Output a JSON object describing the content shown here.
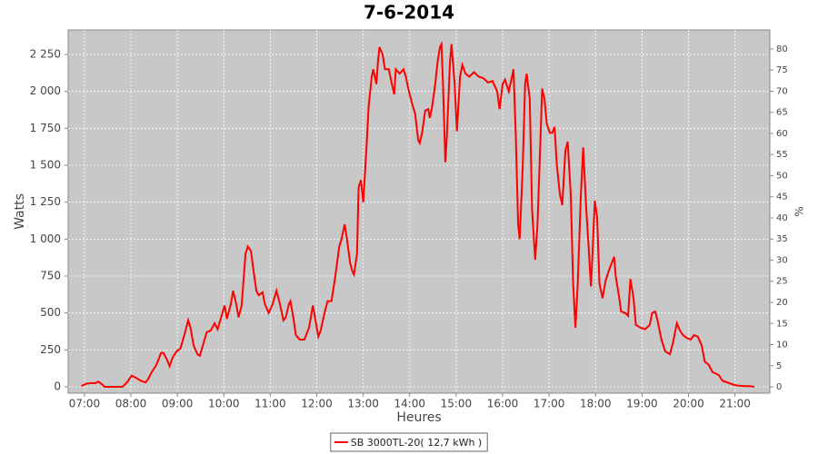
{
  "chart_data": {
    "type": "line",
    "title": "7-6-2014",
    "xlabel": "Heures",
    "ylabel": "Watts",
    "y2label": "%",
    "x": [
      "06:56",
      "07:02",
      "07:08",
      "07:14",
      "07:18",
      "07:22",
      "07:26",
      "07:49",
      "07:55",
      "08:01",
      "08:07",
      "08:13",
      "08:19",
      "08:22",
      "08:27",
      "08:33",
      "08:39",
      "08:42",
      "08:47",
      "08:50",
      "08:54",
      "08:59",
      "09:04",
      "09:09",
      "09:14",
      "09:17",
      "09:21",
      "09:26",
      "09:29",
      "09:34",
      "09:38",
      "09:43",
      "09:48",
      "09:52",
      "09:57",
      "10:01",
      "10:04",
      "10:09",
      "10:12",
      "10:16",
      "10:19",
      "10:23",
      "10:28",
      "10:31",
      "10:35",
      "10:38",
      "10:42",
      "10:45",
      "10:50",
      "10:53",
      "10:58",
      "11:03",
      "11:08",
      "11:12",
      "11:17",
      "11:20",
      "11:24",
      "11:26",
      "11:30",
      "11:33",
      "11:38",
      "11:44",
      "11:50",
      "11:55",
      "11:58",
      "12:02",
      "12:05",
      "12:10",
      "12:14",
      "12:19",
      "12:24",
      "12:29",
      "12:32",
      "12:36",
      "12:39",
      "12:43",
      "12:46",
      "12:48",
      "12:52",
      "12:54",
      "12:57",
      "13:00",
      "13:04",
      "13:07",
      "13:11",
      "13:13",
      "13:17",
      "13:19",
      "13:21",
      "13:25",
      "13:28",
      "13:33",
      "13:37",
      "13:40",
      "13:42",
      "13:47",
      "13:52",
      "13:55",
      "13:59",
      "14:04",
      "14:07",
      "14:11",
      "14:13",
      "14:16",
      "14:20",
      "14:24",
      "14:26",
      "14:29",
      "14:33",
      "14:36",
      "14:39",
      "14:41",
      "14:43",
      "14:46",
      "14:48",
      "14:52",
      "14:54",
      "14:58",
      "15:01",
      "15:05",
      "15:08",
      "15:12",
      "15:17",
      "15:23",
      "15:29",
      "15:35",
      "15:41",
      "15:47",
      "15:53",
      "15:56",
      "16:00",
      "16:03",
      "16:08",
      "16:14",
      "16:17",
      "16:20",
      "16:22",
      "16:26",
      "16:29",
      "16:31",
      "16:35",
      "16:38",
      "16:42",
      "16:45",
      "16:49",
      "16:51",
      "16:54",
      "16:57",
      "17:01",
      "17:04",
      "17:07",
      "17:10",
      "17:14",
      "17:17",
      "17:21",
      "17:24",
      "17:28",
      "17:31",
      "17:34",
      "17:37",
      "17:41",
      "17:44",
      "17:48",
      "17:51",
      "17:54",
      "17:56",
      "17:59",
      "18:02",
      "18:05",
      "18:09",
      "18:13",
      "18:18",
      "18:24",
      "18:26",
      "18:30",
      "18:33",
      "18:38",
      "18:42",
      "18:45",
      "18:49",
      "18:52",
      "18:58",
      "19:04",
      "19:10",
      "19:13",
      "19:17",
      "19:20",
      "19:25",
      "19:30",
      "19:36",
      "19:40",
      "19:45",
      "19:49",
      "19:53",
      "19:58",
      "20:03",
      "20:07",
      "20:12",
      "20:17",
      "20:21",
      "20:26",
      "20:31",
      "20:35",
      "20:39",
      "20:44",
      "20:50",
      "20:55",
      "21:01",
      "21:11",
      "21:19",
      "21:25"
    ],
    "series": [
      {
        "name": "SB 3000TL-20( 12,7 kWh )",
        "color": "#ff0000",
        "values": [
          5,
          20,
          25,
          25,
          35,
          20,
          0,
          0,
          30,
          75,
          60,
          40,
          30,
          50,
          100,
          150,
          230,
          230,
          180,
          140,
          200,
          240,
          260,
          350,
          450,
          400,
          280,
          220,
          210,
          300,
          370,
          380,
          430,
          390,
          480,
          550,
          460,
          560,
          650,
          560,
          470,
          550,
          900,
          950,
          920,
          800,
          650,
          620,
          640,
          560,
          500,
          560,
          650,
          570,
          450,
          470,
          560,
          580,
          460,
          350,
          320,
          320,
          400,
          550,
          460,
          340,
          380,
          500,
          580,
          580,
          750,
          950,
          1000,
          1100,
          1000,
          840,
          780,
          760,
          900,
          1350,
          1400,
          1250,
          1600,
          1900,
          2100,
          2150,
          2050,
          2200,
          2300,
          2250,
          2150,
          2150,
          2050,
          1980,
          2150,
          2120,
          2150,
          2100,
          2000,
          1900,
          1850,
          1670,
          1650,
          1720,
          1870,
          1880,
          1820,
          1900,
          2050,
          2200,
          2300,
          2320,
          2050,
          1520,
          1700,
          2200,
          2320,
          2050,
          1730,
          2100,
          2180,
          2120,
          2100,
          2130,
          2100,
          2090,
          2060,
          2070,
          2000,
          1880,
          2050,
          2080,
          2000,
          2150,
          1700,
          1100,
          1000,
          1500,
          2050,
          2120,
          1950,
          1200,
          860,
          1100,
          1700,
          2020,
          1950,
          1780,
          1720,
          1720,
          1760,
          1500,
          1300,
          1230,
          1600,
          1660,
          1300,
          700,
          400,
          700,
          1300,
          1620,
          1200,
          950,
          680,
          900,
          1260,
          1150,
          700,
          600,
          720,
          800,
          880,
          750,
          620,
          510,
          500,
          480,
          730,
          600,
          420,
          400,
          390,
          420,
          500,
          510,
          450,
          320,
          240,
          220,
          300,
          430,
          380,
          350,
          330,
          320,
          350,
          340,
          280,
          170,
          150,
          100,
          90,
          80,
          40,
          30,
          20,
          10,
          5,
          5,
          0
        ]
      }
    ],
    "xlim": [
      "06:39",
      "21:45"
    ],
    "xticks": [
      "07:00",
      "08:00",
      "09:00",
      "10:00",
      "11:00",
      "12:00",
      "13:00",
      "14:00",
      "15:00",
      "16:00",
      "17:00",
      "18:00",
      "19:00",
      "20:00",
      "21:00"
    ],
    "ylim": [
      -43,
      2416
    ],
    "yticks": [
      0,
      250,
      500,
      750,
      {
        "value": 1000,
        "label": "1 000"
      },
      {
        "value": 1250,
        "label": "1 250"
      },
      {
        "value": 1500,
        "label": "1 500"
      },
      {
        "value": 1750,
        "label": "1 750"
      },
      {
        "value": 2000,
        "label": "2 000"
      },
      {
        "value": 2250,
        "label": "2 250"
      }
    ],
    "y2lim": [
      -1.5,
      84.5
    ],
    "y2ticks": [
      0,
      5,
      10,
      15,
      20,
      25,
      30,
      35,
      40,
      45,
      50,
      55,
      60,
      65,
      70,
      75,
      80
    ],
    "grid": true,
    "plot_background": "#c8c8c8",
    "legend": "bottom"
  }
}
